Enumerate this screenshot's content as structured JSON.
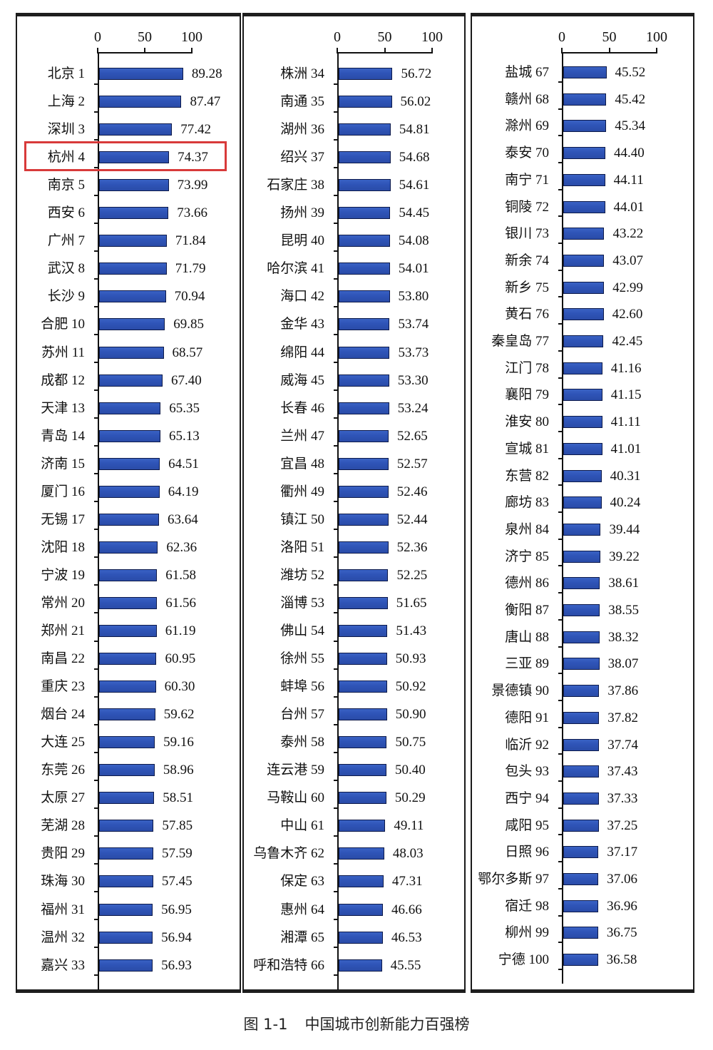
{
  "caption": {
    "figure_number": "图 1-1",
    "title": "中国城市创新能力百强榜"
  },
  "axis": {
    "ticks": [
      "0",
      "50",
      "100"
    ],
    "min": 0,
    "max": 100
  },
  "highlight": {
    "rank": 4,
    "color": "#d83a3a"
  },
  "colors": {
    "bar": "#2f55b8",
    "bar_border": "#0d1a4a",
    "panel_border": "#1e1e1e"
  },
  "chart_data": {
    "type": "bar",
    "orientation": "horizontal",
    "title": "中国城市创新能力百强榜",
    "figure_label": "图 1-1",
    "xlabel": "",
    "ylabel": "",
    "xlim": [
      0,
      100
    ],
    "xticks": [
      0,
      50,
      100
    ],
    "grid": false,
    "legend": null,
    "panels": 3,
    "annotations": [
      {
        "type": "red-box",
        "target": "杭州 4"
      }
    ],
    "categories": [
      "北京 1",
      "上海 2",
      "深圳 3",
      "杭州 4",
      "南京 5",
      "西安 6",
      "广州 7",
      "武汉 8",
      "长沙 9",
      "合肥 10",
      "苏州 11",
      "成都 12",
      "天津 13",
      "青岛 14",
      "济南 15",
      "厦门 16",
      "无锡 17",
      "沈阳 18",
      "宁波 19",
      "常州 20",
      "郑州 21",
      "南昌 22",
      "重庆 23",
      "烟台 24",
      "大连 25",
      "东莞 26",
      "太原 27",
      "芜湖 28",
      "贵阳 29",
      "珠海 30",
      "福州 31",
      "温州 32",
      "嘉兴 33",
      "株洲 34",
      "南通 35",
      "湖州 36",
      "绍兴 37",
      "石家庄 38",
      "扬州 39",
      "昆明 40",
      "哈尔滨 41",
      "海口 42",
      "金华 43",
      "绵阳 44",
      "威海 45",
      "长春 46",
      "兰州 47",
      "宜昌 48",
      "衢州 49",
      "镇江 50",
      "洛阳 51",
      "潍坊 52",
      "淄博 53",
      "佛山 54",
      "徐州 55",
      "蚌埠 56",
      "台州 57",
      "泰州 58",
      "连云港 59",
      "马鞍山 60",
      "中山 61",
      "乌鲁木齐 62",
      "保定 63",
      "惠州 64",
      "湘潭 65",
      "呼和浩特 66",
      "盐城 67",
      "赣州 68",
      "滁州 69",
      "泰安 70",
      "南宁 71",
      "铜陵 72",
      "银川 73",
      "新余 74",
      "新乡 75",
      "黄石 76",
      "秦皇岛 77",
      "江门 78",
      "襄阳 79",
      "淮安 80",
      "宣城 81",
      "东营 82",
      "廊坊 83",
      "泉州 84",
      "济宁 85",
      "德州 86",
      "衡阳 87",
      "唐山 88",
      "三亚 89",
      "景德镇 90",
      "德阳 91",
      "临沂 92",
      "包头 93",
      "西宁 94",
      "咸阳 95",
      "日照 96",
      "鄂尔多斯 97",
      "宿迁 98",
      "柳州 99",
      "宁德 100"
    ],
    "values": [
      89.28,
      87.47,
      77.42,
      74.37,
      73.99,
      73.66,
      71.84,
      71.79,
      70.94,
      69.85,
      68.57,
      67.4,
      65.35,
      65.13,
      64.51,
      64.19,
      63.64,
      62.36,
      61.58,
      61.56,
      61.19,
      60.95,
      60.3,
      59.62,
      59.16,
      58.96,
      58.51,
      57.85,
      57.59,
      57.45,
      56.95,
      56.94,
      56.93,
      56.72,
      56.02,
      54.81,
      54.68,
      54.61,
      54.45,
      54.08,
      54.01,
      53.8,
      53.74,
      53.73,
      53.3,
      53.24,
      52.65,
      52.57,
      52.46,
      52.44,
      52.36,
      52.25,
      51.65,
      51.43,
      50.93,
      50.92,
      50.9,
      50.75,
      50.4,
      50.29,
      49.11,
      48.03,
      47.31,
      46.66,
      46.53,
      45.55,
      45.52,
      45.42,
      45.34,
      44.4,
      44.11,
      44.01,
      43.22,
      43.07,
      42.99,
      42.6,
      42.45,
      41.16,
      41.15,
      41.11,
      41.01,
      40.31,
      40.24,
      39.44,
      39.22,
      38.61,
      38.55,
      38.32,
      38.07,
      37.86,
      37.82,
      37.74,
      37.43,
      37.33,
      37.25,
      37.17,
      37.06,
      36.96,
      36.75,
      36.58
    ],
    "value_labels": [
      "89.28",
      "87.47",
      "77.42",
      "74.37",
      "73.99",
      "73.66",
      "71.84",
      "71.79",
      "70.94",
      "69.85",
      "68.57",
      "67.40",
      "65.35",
      "65.13",
      "64.51",
      "64.19",
      "63.64",
      "62.36",
      "61.58",
      "61.56",
      "61.19",
      "60.95",
      "60.30",
      "59.62",
      "59.16",
      "58.96",
      "58.51",
      "57.85",
      "57.59",
      "57.45",
      "56.95",
      "56.94",
      "56.93",
      "56.72",
      "56.02",
      "54.81",
      "54.68",
      "54.61",
      "54.45",
      "54.08",
      "54.01",
      "53.80",
      "53.74",
      "53.73",
      "53.30",
      "53.24",
      "52.65",
      "52.57",
      "52.46",
      "52.44",
      "52.36",
      "52.25",
      "51.65",
      "51.43",
      "50.93",
      "50.92",
      "50.90",
      "50.75",
      "50.40",
      "50.29",
      "49.11",
      "48.03",
      "47.31",
      "46.66",
      "46.53",
      "45.55",
      "45.52",
      "45.42",
      "45.34",
      "44.40",
      "44.11",
      "44.01",
      "43.22",
      "43.07",
      "42.99",
      "42.60",
      "42.45",
      "41.16",
      "41.15",
      "41.11",
      "41.01",
      "40.31",
      "40.24",
      "39.44",
      "39.22",
      "38.61",
      "38.55",
      "38.32",
      "38.07",
      "37.86",
      "37.82",
      "37.74",
      "37.43",
      "37.33",
      "37.25",
      "37.17",
      "37.06",
      "36.96",
      "36.75",
      "36.58"
    ],
    "panel_ranges": [
      [
        1,
        33
      ],
      [
        34,
        66
      ],
      [
        67,
        100
      ]
    ]
  }
}
